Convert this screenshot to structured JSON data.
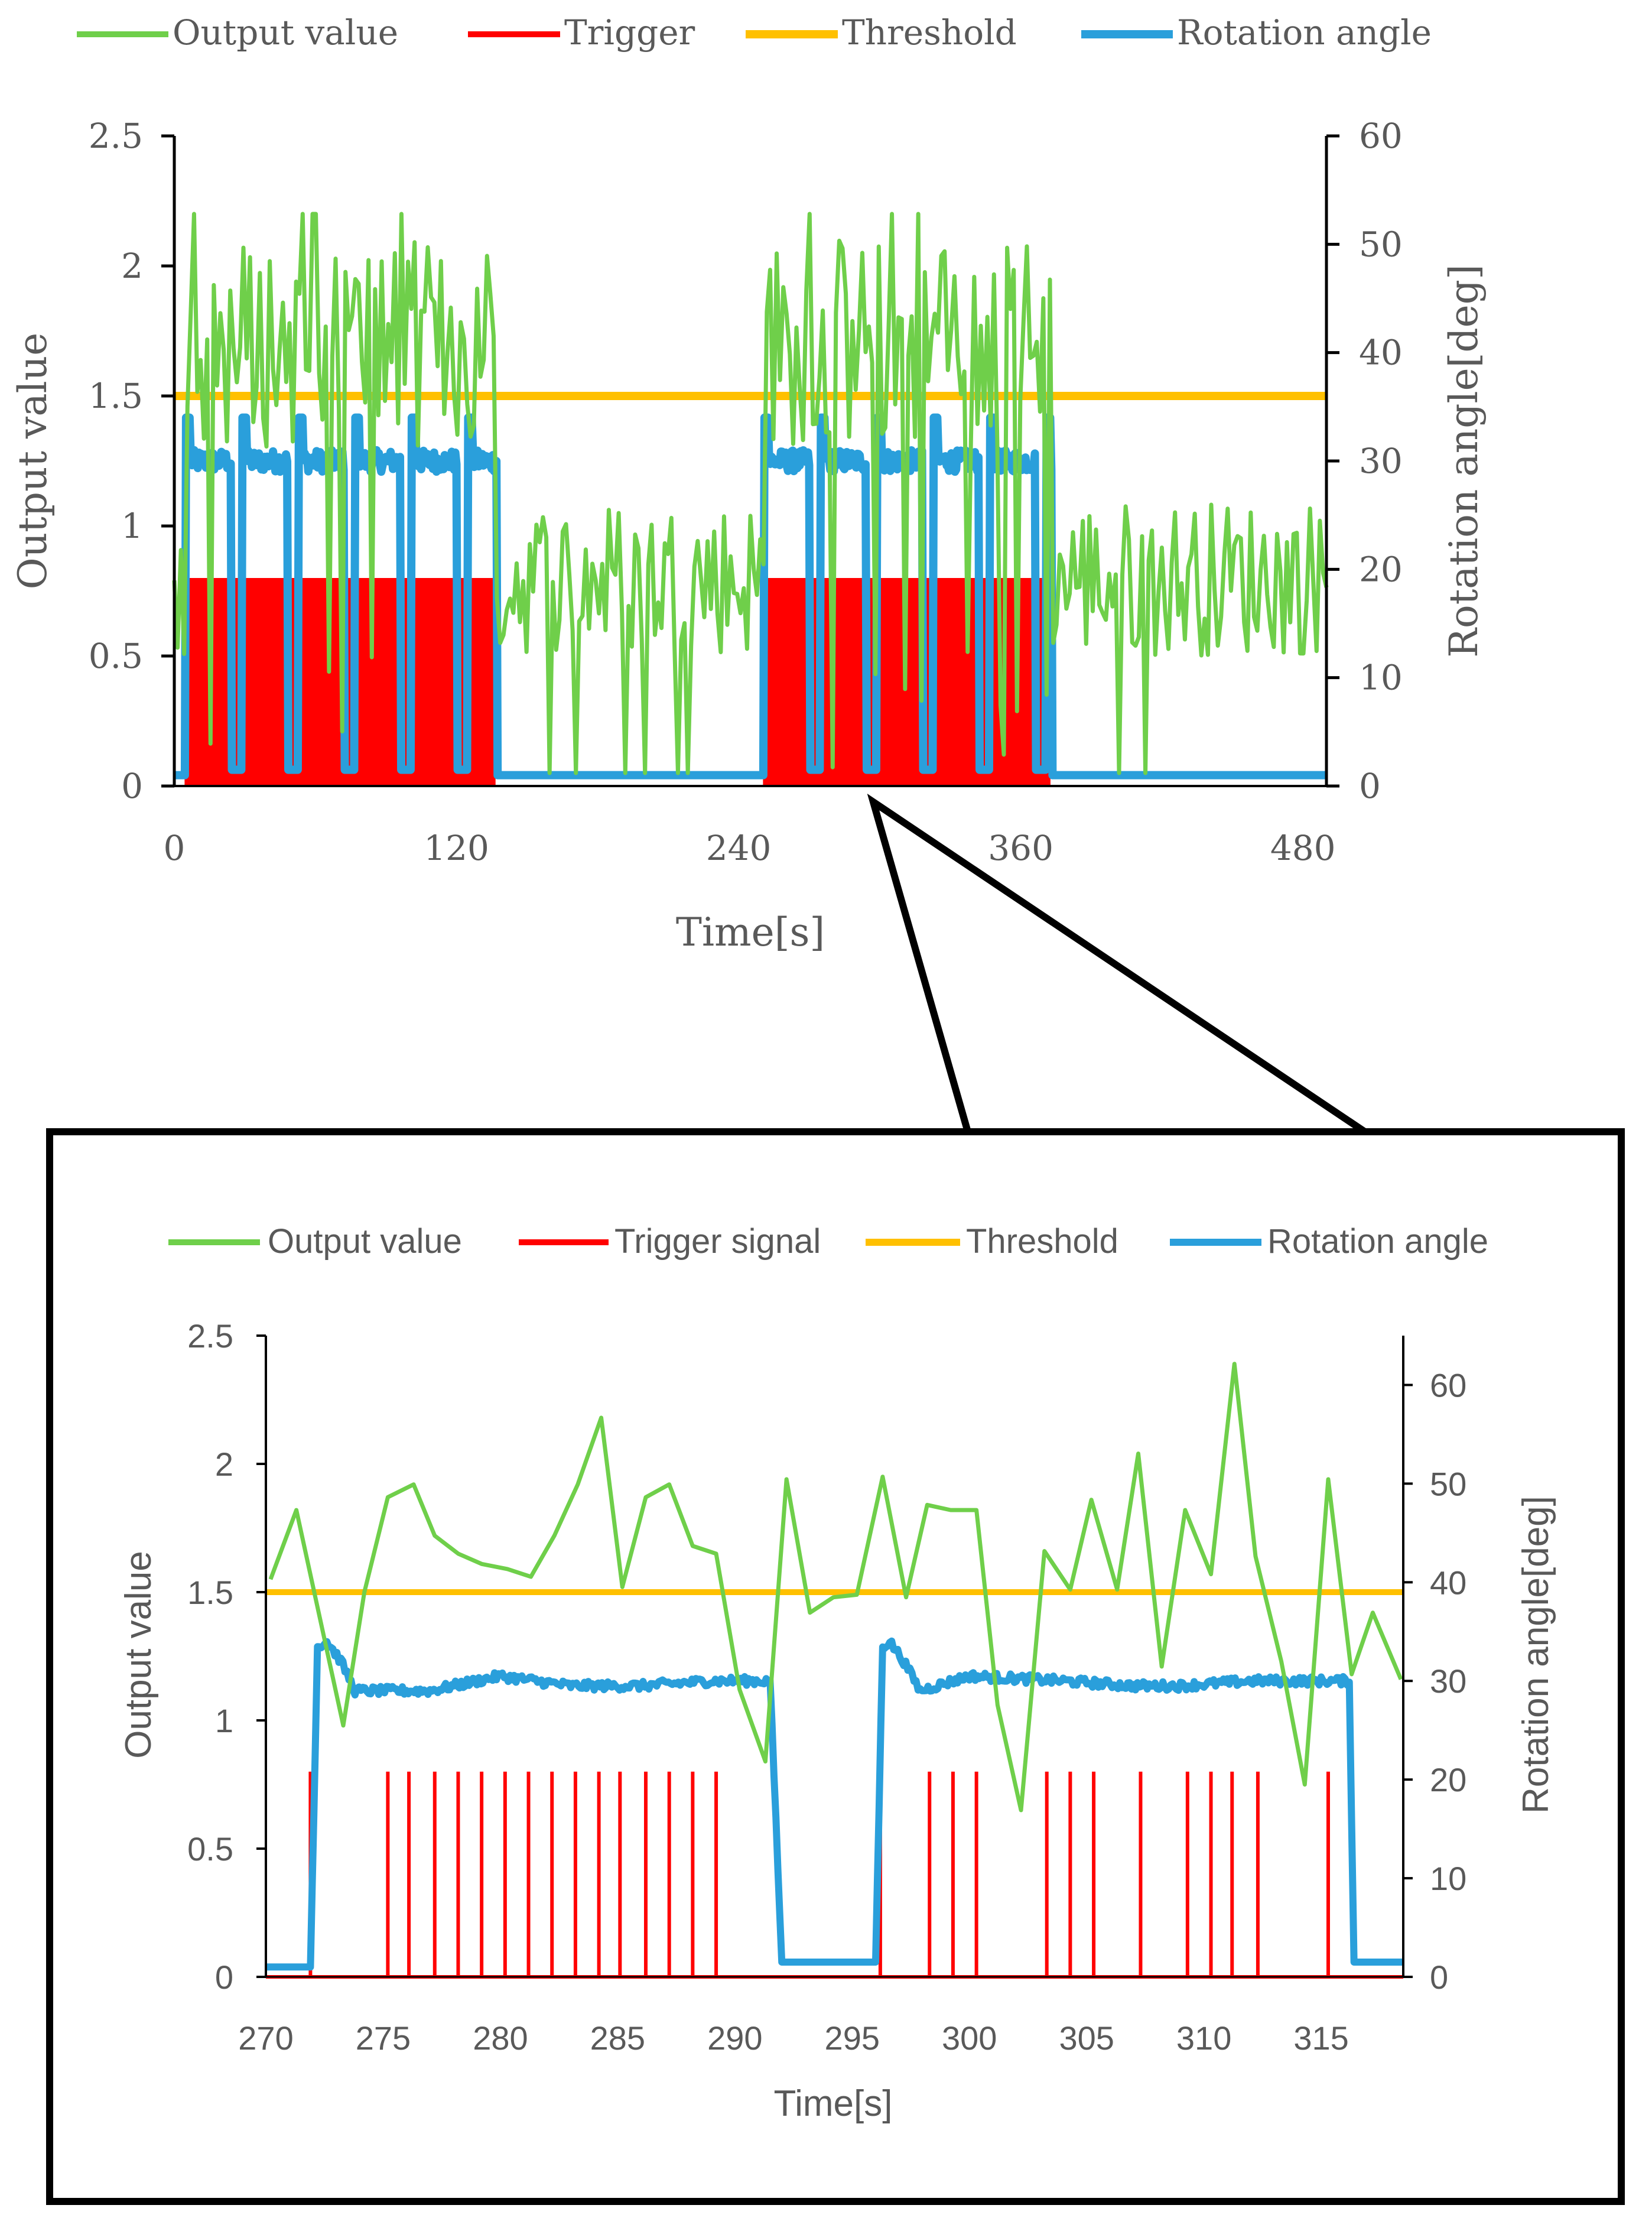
{
  "colors": {
    "output": "#6FCF4A",
    "trigger": "#FF0000",
    "threshold": "#FFC000",
    "rotation": "#2A9FDB",
    "axis": "#000000",
    "text": "#595959"
  },
  "chart_data": [
    {
      "id": "overview",
      "type": "line",
      "legend": [
        "Output value",
        "Trigger",
        "Threshold",
        "Rotation angle"
      ],
      "xlabel": "Time[s]",
      "ylabel": "Output value",
      "y2label": "Rotation angle[deg]",
      "xlim": [
        0,
        490
      ],
      "ylim": [
        0,
        2.5
      ],
      "y2lim": [
        0,
        60
      ],
      "xticks": [
        "0",
        "120",
        "240",
        "360",
        "480"
      ],
      "xtick_values": [
        0,
        120,
        240,
        360,
        480
      ],
      "yticks": [
        "0",
        "0.5",
        "1",
        "1.5",
        "2",
        "2.5"
      ],
      "y2ticks": [
        "0",
        "10",
        "20",
        "30",
        "40",
        "50",
        "60"
      ],
      "threshold": 1.5,
      "active_intervals": [
        [
          5,
          137
        ],
        [
          251,
          373
        ]
      ],
      "trigger_level": 0.8,
      "rotation_active_deg": 30,
      "rotation_idle_deg": 1,
      "output_active_range": [
        1.3,
        2.1
      ],
      "output_idle_range": [
        0.5,
        1.1
      ]
    },
    {
      "id": "zoom",
      "type": "line",
      "legend": [
        "Output value",
        "Trigger signal",
        "Threshold",
        "Rotation angle"
      ],
      "xlabel": "Time[s]",
      "ylabel": "Output value",
      "y2label": "Rotation angle[deg]",
      "xlim": [
        270,
        318.5
      ],
      "ylim": [
        0,
        2.5
      ],
      "y2lim": [
        0,
        65
      ],
      "xticks": [
        "270",
        "275",
        "280",
        "285",
        "290",
        "295",
        "300",
        "305",
        "310",
        "315"
      ],
      "xtick_values": [
        270,
        275,
        280,
        285,
        290,
        295,
        300,
        305,
        310,
        315
      ],
      "yticks": [
        "0",
        "0.5",
        "1",
        "1.5",
        "2",
        "2.5"
      ],
      "y2ticks": [
        "0",
        "10",
        "20",
        "30",
        "40",
        "50",
        "60"
      ],
      "threshold": 1.5,
      "output_series": {
        "x": [
          270.2,
          271.3,
          272.3,
          273.3,
          274.2,
          275.2,
          276.3,
          277.2,
          278.2,
          279.2,
          280.3,
          281.3,
          282.3,
          283.3,
          284.3,
          285.2,
          286.2,
          287.2,
          288.2,
          289.2,
          290.2,
          291.3,
          292.2,
          293.2,
          294.2,
          295.2,
          296.3,
          297.3,
          298.2,
          299.2,
          300.3,
          301.2,
          302.2,
          303.2,
          304.3,
          305.2,
          306.3,
          307.2,
          308.2,
          309.2,
          310.3,
          311.3,
          312.2,
          313.3,
          314.3,
          315.3,
          316.3,
          317.2,
          318.4
        ],
        "y": [
          1.55,
          1.82,
          1.4,
          0.98,
          1.5,
          1.87,
          1.92,
          1.72,
          1.65,
          1.61,
          1.59,
          1.56,
          1.72,
          1.92,
          2.18,
          1.52,
          1.87,
          1.92,
          1.68,
          1.65,
          1.12,
          0.84,
          1.94,
          1.42,
          1.48,
          1.49,
          1.95,
          1.48,
          1.84,
          1.82,
          1.82,
          1.06,
          0.65,
          1.66,
          1.51,
          1.86,
          1.51,
          2.04,
          1.21,
          1.82,
          1.57,
          2.39,
          1.64,
          1.23,
          0.75,
          1.94,
          1.18,
          1.42,
          1.16
        ]
      },
      "trigger_times": [
        271.9,
        275.2,
        276.1,
        277.2,
        278.2,
        279.2,
        280.2,
        281.2,
        282.2,
        283.2,
        284.2,
        285.1,
        286.2,
        287.2,
        288.2,
        289.2,
        296.2,
        298.3,
        299.3,
        300.3,
        303.3,
        304.3,
        305.3,
        307.3,
        309.3,
        310.3,
        311.2,
        312.3,
        315.3
      ],
      "trigger_level": 0.8,
      "rotation_series": {
        "x": [
          270,
          271.9,
          272.2,
          272.6,
          273.2,
          273.8,
          277,
          280,
          283,
          286,
          289,
          291.5,
          292,
          292.2,
          296,
          296.3,
          296.6,
          297.2,
          297.9,
          300,
          304,
          307,
          309,
          312,
          315.5,
          316.2,
          316.4,
          318.5
        ],
        "y": [
          1,
          1,
          33.5,
          34,
          32,
          29,
          29,
          30.5,
          29.5,
          29.5,
          30,
          30,
          1.5,
          1.5,
          1.5,
          33.5,
          34,
          32,
          29,
          30.5,
          30,
          29.5,
          29.5,
          30,
          30,
          30,
          1.5,
          1.5
        ]
      }
    }
  ]
}
